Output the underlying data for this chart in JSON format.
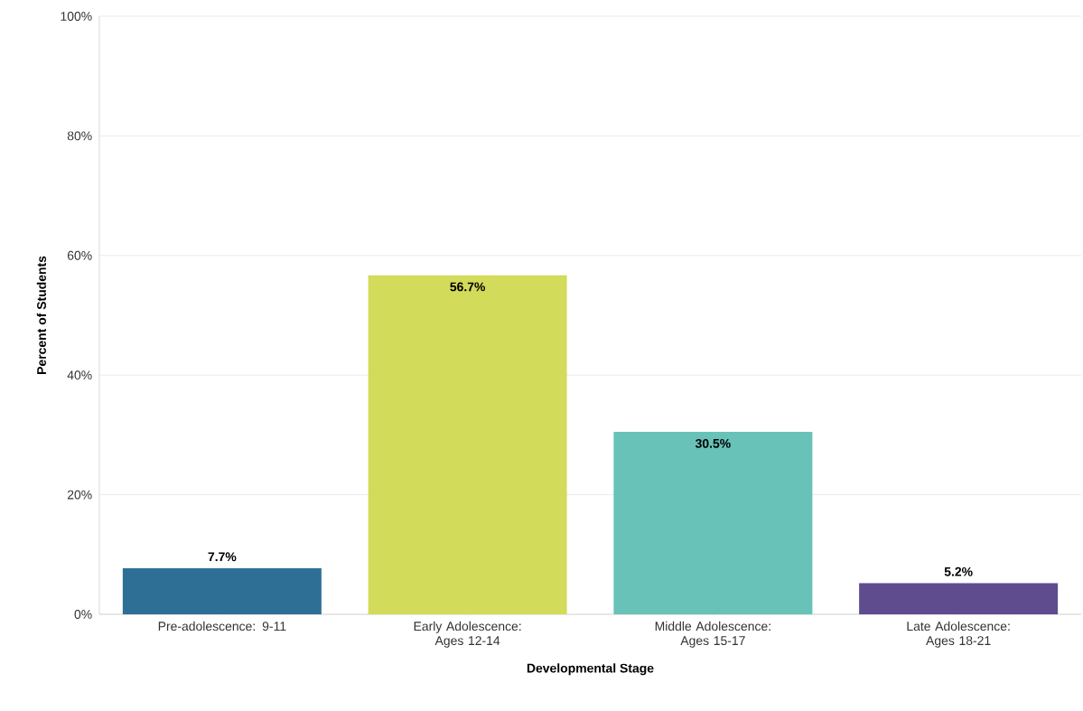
{
  "chart_data": {
    "type": "bar",
    "categories": [
      "Pre-adolescence: 9-11",
      "Early Adolescence: Ages 12-14",
      "Middle Adolescence: Ages 15-17",
      "Late Adolescence: Ages 18-21"
    ],
    "values": [
      7.7,
      56.7,
      30.5,
      5.2
    ],
    "colors": [
      "#2e6f96",
      "#d3db5a",
      "#68c2b8",
      "#5e4c8f"
    ],
    "value_labels": [
      "7.7%",
      "56.7%",
      "30.5%",
      "5.2%"
    ],
    "xlabel": "Developmental Stage",
    "ylabel": "Percent of Students",
    "ylim": [
      0,
      100
    ],
    "yticks": [
      {
        "value": 0,
        "label": "0%"
      },
      {
        "value": 20,
        "label": "20%"
      },
      {
        "value": 40,
        "label": "40%"
      },
      {
        "value": 60,
        "label": "60%"
      },
      {
        "value": 80,
        "label": "80%"
      },
      {
        "value": 100,
        "label": "100%"
      }
    ],
    "grid": "y"
  }
}
